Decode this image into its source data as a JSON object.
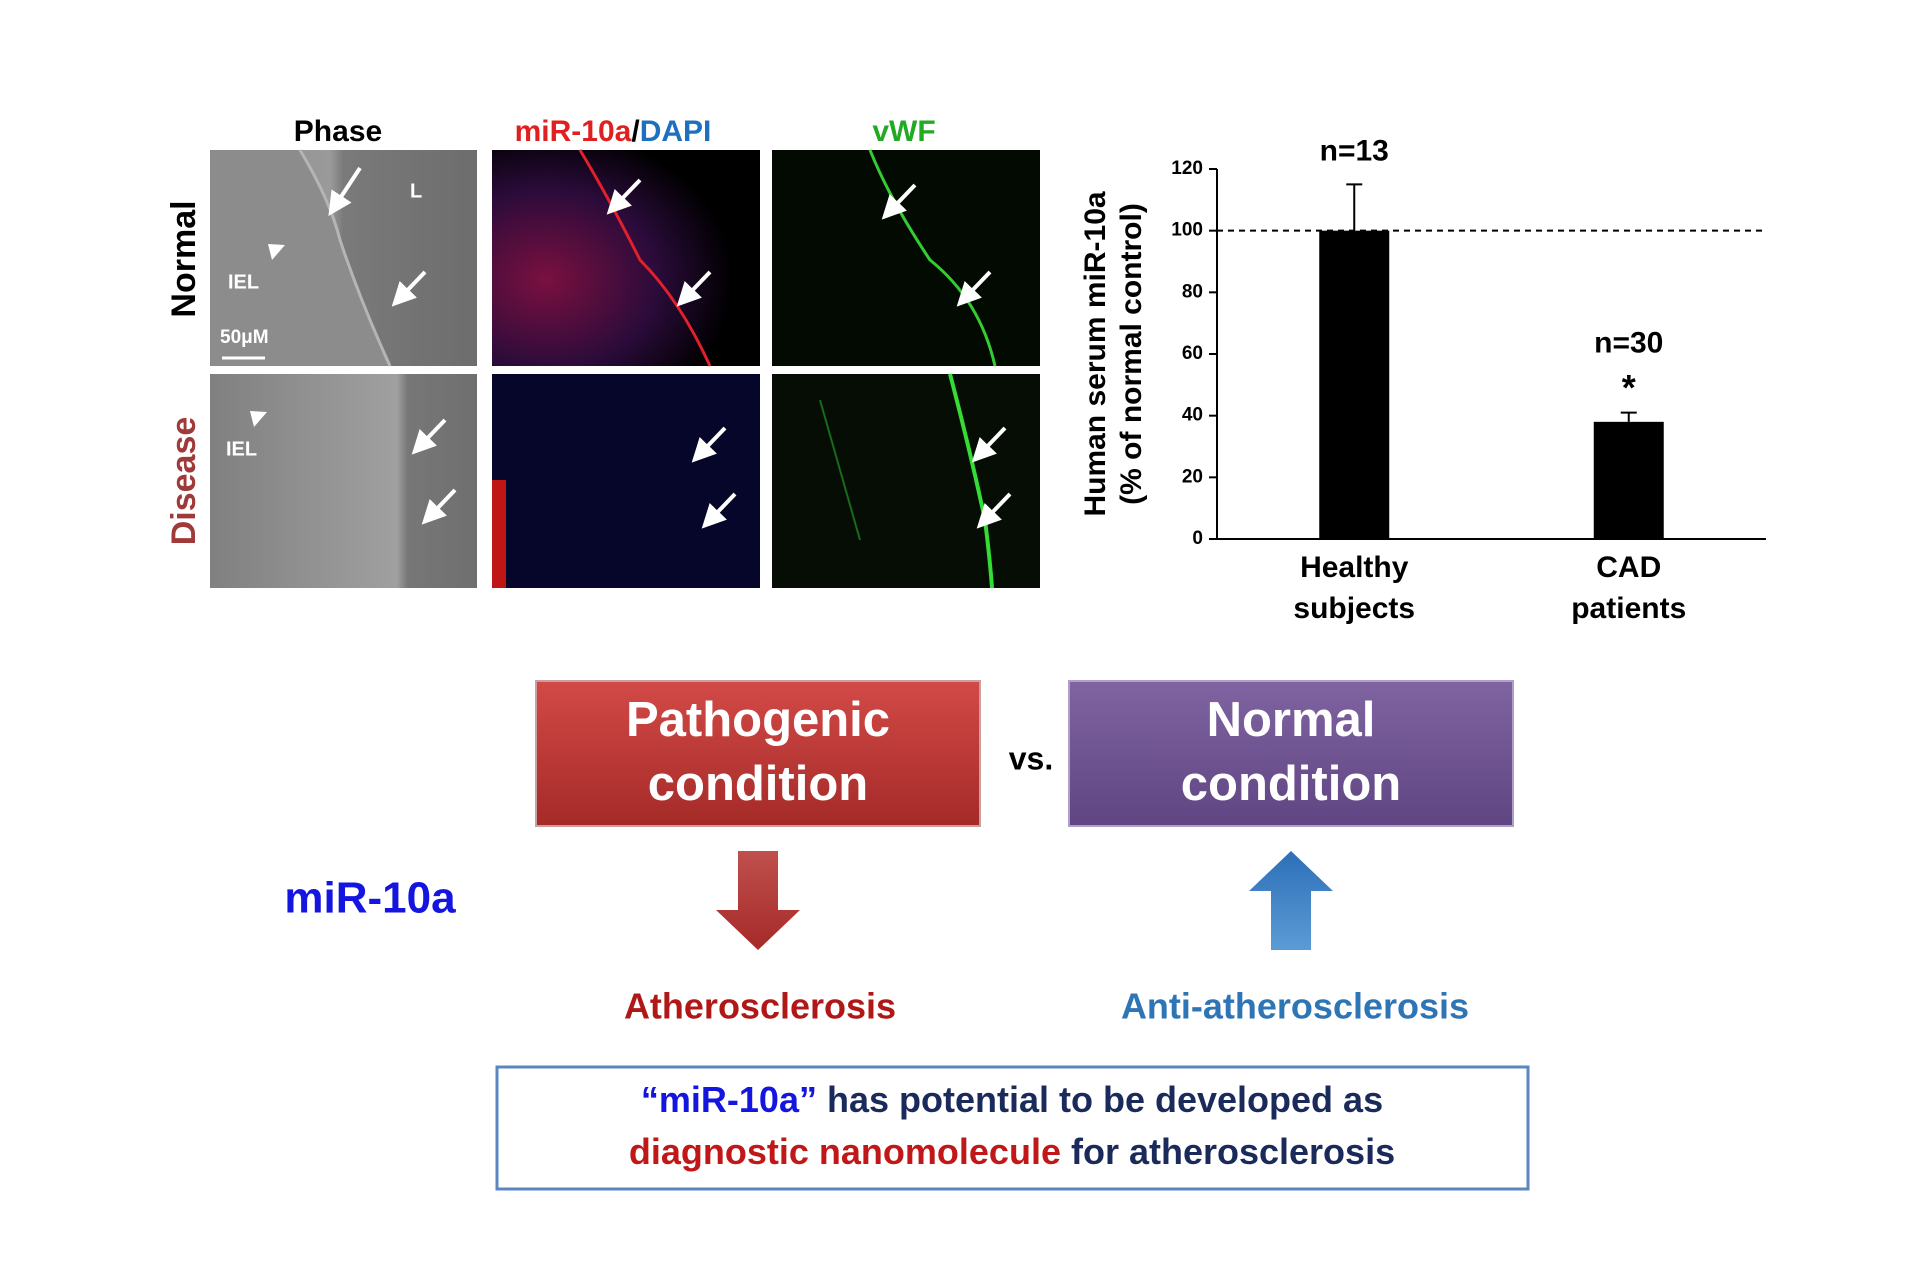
{
  "panels": {
    "headers": {
      "phase": "Phase",
      "mir": "miR-10a",
      "slash": "/",
      "dapi": "DAPI",
      "vwf": "vWF"
    },
    "rows": {
      "normal": "Normal",
      "disease": "Disease"
    },
    "image_labels": {
      "lumen": "L",
      "iel_normal": "IEL",
      "scale_bar": "50μM",
      "iel_disease": "IEL"
    }
  },
  "chart_data": {
    "type": "bar",
    "y_label": [
      "Human serum miR-10a",
      "(% of normal control)"
    ],
    "categories": [
      "Healthy subjects",
      "CAD patients"
    ],
    "values": [
      100,
      38
    ],
    "errors": [
      15,
      3
    ],
    "n_labels": [
      "n=13",
      "n=30"
    ],
    "significance_marker": "*",
    "reference_line": 100,
    "color": "#000000",
    "ylim": [
      0,
      120
    ],
    "yticks": [
      0,
      20,
      40,
      60,
      80,
      100,
      120
    ]
  },
  "diagram": {
    "pathogenic": [
      "Pathogenic",
      "condition"
    ],
    "vs": "vs.",
    "normal": [
      "Normal",
      "condition"
    ],
    "mirna": "miR-10a",
    "athero": "Atherosclerosis",
    "anti": "Anti-atherosclerosis",
    "conclusion": {
      "line1": [
        "“miR-10a”",
        " has potential to be developed as"
      ],
      "line2": [
        "diagnostic nanomolecule",
        " for atherosclerosis"
      ]
    }
  }
}
